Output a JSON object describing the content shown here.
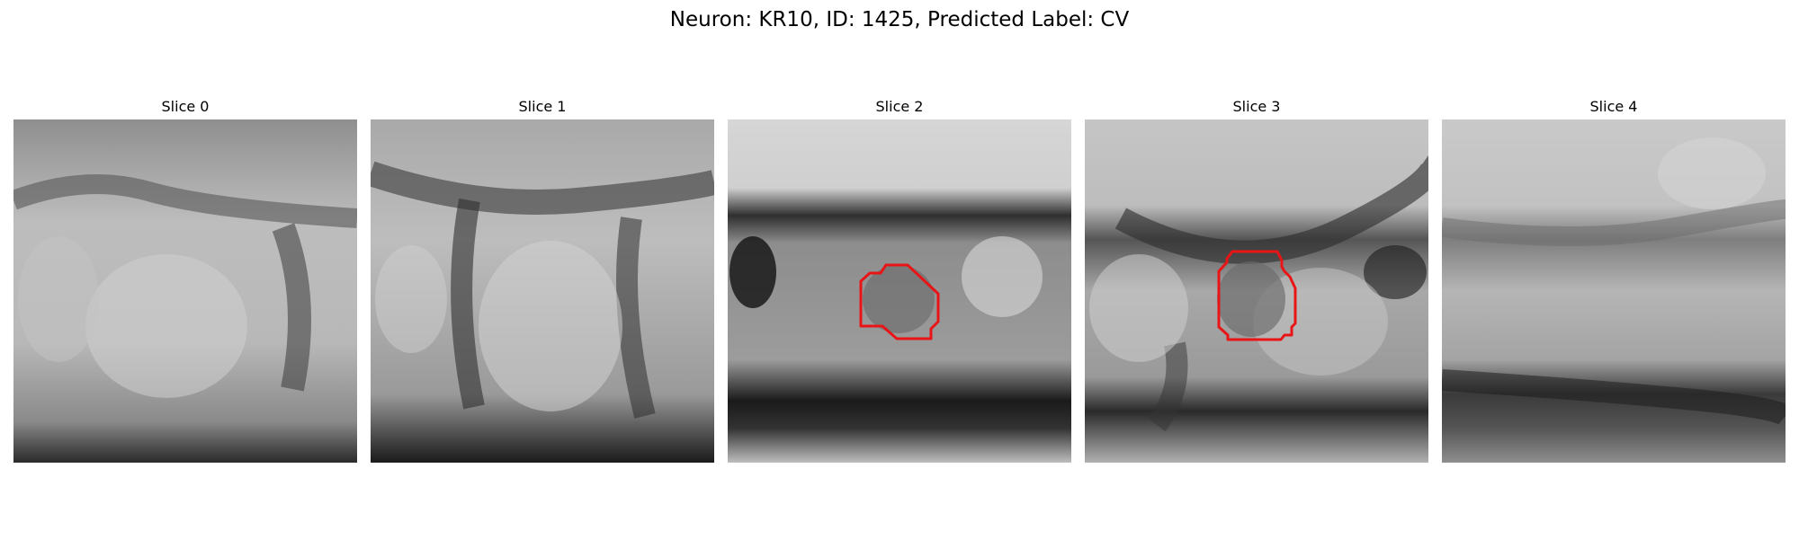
{
  "figure": {
    "title": "Neuron: KR10, ID: 1425, Predicted Label: CV"
  },
  "panels": [
    {
      "title": "Slice 0",
      "has_contour": false
    },
    {
      "title": "Slice 1",
      "has_contour": false
    },
    {
      "title": "Slice 2",
      "has_contour": true
    },
    {
      "title": "Slice 3",
      "has_contour": true
    },
    {
      "title": "Slice 4",
      "has_contour": false
    }
  ],
  "colors": {
    "background": "#ffffff",
    "contour": "#e81416"
  }
}
